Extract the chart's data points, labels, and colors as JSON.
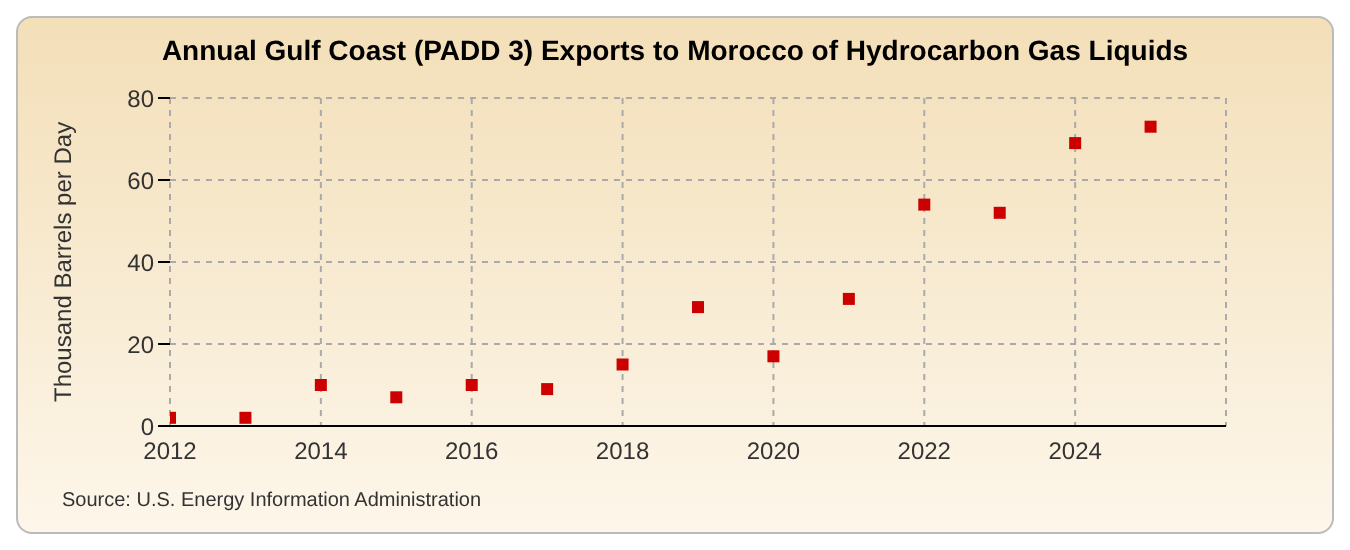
{
  "chart_data": {
    "type": "scatter",
    "title": "Annual Gulf Coast (PADD 3) Exports to Morocco of Hydrocarbon Gas Liquids",
    "ylabel": "Thousand Barrels per Day",
    "annotations": [
      "Source: U.S. Energy Information Administration"
    ],
    "x": [
      2012,
      2013,
      2014,
      2015,
      2016,
      2017,
      2018,
      2019,
      2020,
      2021,
      2022,
      2023,
      2024,
      2025
    ],
    "series": [
      {
        "color": "#cc0000",
        "values": [
          2,
          2,
          10,
          7,
          10,
          9,
          15,
          29,
          17,
          31,
          54,
          52,
          69,
          73
        ]
      }
    ],
    "xlim": [
      2012,
      2026
    ],
    "xticks": [
      2012,
      2014,
      2016,
      2018,
      2020,
      2022,
      2024
    ],
    "ylim": [
      0,
      80
    ],
    "yticks": [
      0,
      20,
      40,
      60,
      80
    ],
    "grid": true,
    "marker": "square",
    "legend": false
  }
}
